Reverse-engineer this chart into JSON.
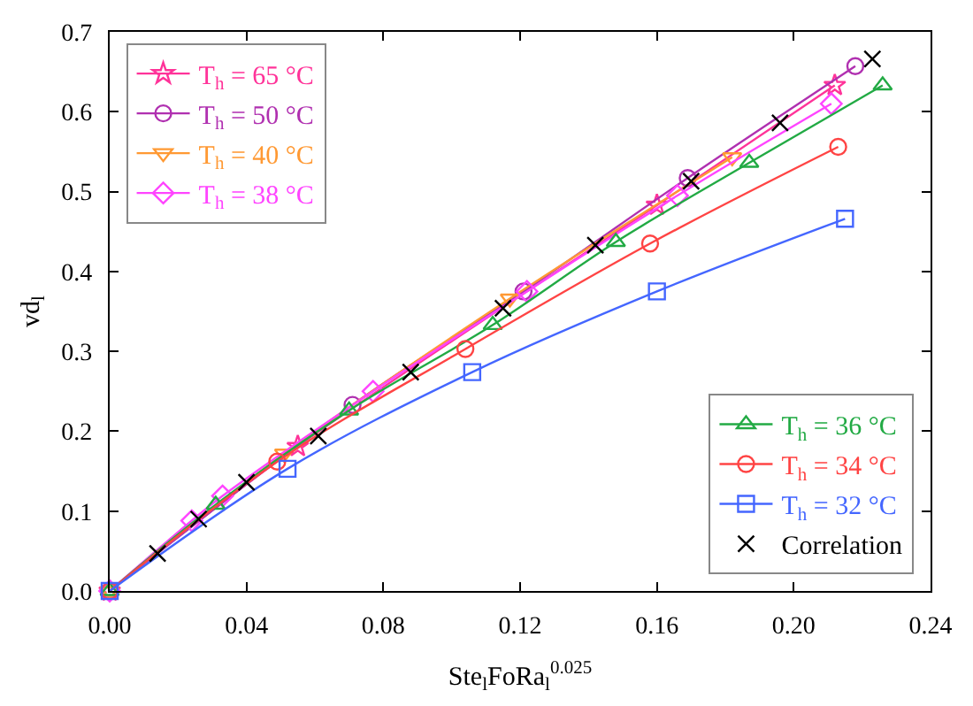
{
  "chart_data": {
    "type": "line",
    "xlabel": "Ste$_{l}$FoRa$_{l}$$^{0.025}$",
    "ylabel": "vd$_{l}$",
    "xlim": [
      0,
      0.24
    ],
    "xticks": [
      {
        "value": 0,
        "label": "0.00"
      },
      0.04,
      0.08,
      0.12,
      0.16,
      {
        "value": 0.2,
        "label": "0.20"
      },
      0.24
    ],
    "ylim": [
      0,
      0.7
    ],
    "yticks": [
      {
        "value": 0,
        "label": "0.0"
      },
      0.1,
      0.2,
      0.3,
      0.4,
      0.5,
      0.6,
      0.7
    ],
    "legend": [
      "top left",
      "bottom right"
    ],
    "line_style": "solid",
    "series": [
      {
        "name": "T$_{h}$ = 65 °C",
        "color": "#ff3399",
        "marker": "star",
        "x": [
          0,
          0.055,
          0.16,
          0.212
        ],
        "values": [
          0,
          0.181,
          0.483,
          0.633
        ]
      },
      {
        "name": "T$_{h}$ = 50 °C",
        "color": "#b030b0",
        "marker": "circle",
        "x": [
          0,
          0.071,
          0.121,
          0.169,
          0.218
        ],
        "values": [
          0,
          0.233,
          0.375,
          0.517,
          0.657
        ]
      },
      {
        "name": "T$_{h}$ = 40 °C",
        "color": "#ff9933",
        "marker": "triangle-down",
        "x": [
          0,
          0.051,
          0.117,
          0.182
        ],
        "values": [
          0,
          0.172,
          0.366,
          0.543
        ]
      },
      {
        "name": "T$_{h}$ = 38 °C",
        "color": "#ff44ff",
        "marker": "diamond",
        "x": [
          0,
          0.024,
          0.033,
          0.077,
          0.122,
          0.166,
          0.211
        ],
        "values": [
          0,
          0.088,
          0.119,
          0.25,
          0.375,
          0.495,
          0.61
        ]
      },
      {
        "name": "T$_{h}$ = 36 °C",
        "color": "#22aa44",
        "marker": "triangle",
        "x": [
          0,
          0.031,
          0.07,
          0.112,
          0.148,
          0.187,
          0.226
        ],
        "values": [
          0,
          0.108,
          0.226,
          0.333,
          0.437,
          0.536,
          0.633
        ]
      },
      {
        "name": "T$_{h}$ = 34 °C",
        "color": "#ff4444",
        "marker": "circle",
        "x": [
          0,
          0.049,
          0.104,
          0.158,
          0.213
        ],
        "values": [
          0,
          0.162,
          0.303,
          0.435,
          0.556
        ]
      },
      {
        "name": "T$_{h}$ = 32 °C",
        "color": "#4466ff",
        "marker": "square",
        "x": [
          0,
          0.052,
          0.106,
          0.16,
          0.215
        ],
        "values": [
          0,
          0.153,
          0.274,
          0.375,
          0.466
        ]
      },
      {
        "name": "Correlation",
        "color": "#000000",
        "marker": "cross",
        "type": "scatter",
        "x": [
          0.014,
          0.026,
          0.04,
          0.061,
          0.088,
          0.115,
          0.142,
          0.17,
          0.196,
          0.223
        ],
        "values": [
          0.047,
          0.09,
          0.136,
          0.194,
          0.274,
          0.354,
          0.433,
          0.513,
          0.586,
          0.666
        ]
      }
    ]
  }
}
